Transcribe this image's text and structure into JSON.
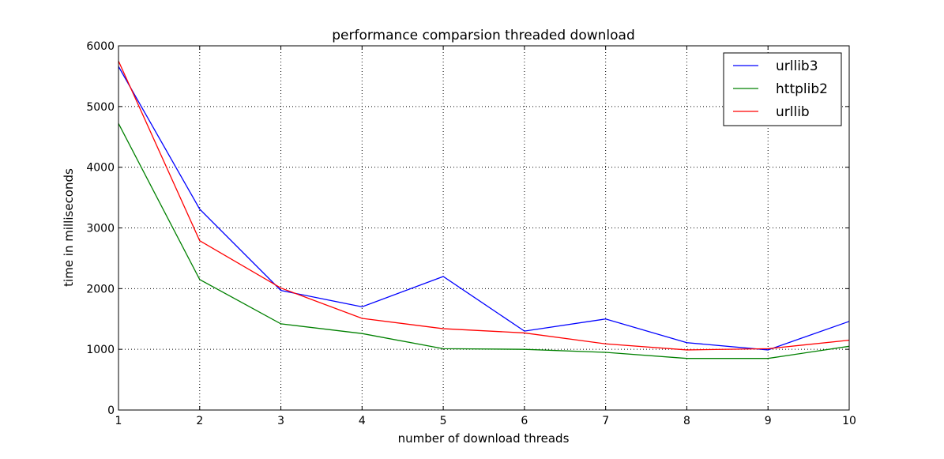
{
  "chart_data": {
    "type": "line",
    "title": "performance comparsion threaded download",
    "xlabel": "number of download threads",
    "ylabel": "time in milliseconds",
    "x": [
      1,
      2,
      3,
      4,
      5,
      6,
      7,
      8,
      9,
      10
    ],
    "xlim": [
      1,
      10
    ],
    "ylim": [
      0,
      6000
    ],
    "xticks": [
      1,
      2,
      3,
      4,
      5,
      6,
      7,
      8,
      9,
      10
    ],
    "yticks": [
      0,
      1000,
      2000,
      3000,
      4000,
      5000,
      6000
    ],
    "grid": true,
    "legend_position": "top-right",
    "series": [
      {
        "name": "urllib3",
        "color": "#0000ff",
        "values": [
          5660,
          3310,
          1970,
          1700,
          2200,
          1300,
          1500,
          1110,
          990,
          1460
        ]
      },
      {
        "name": "httplib2",
        "color": "#008000",
        "values": [
          4720,
          2150,
          1420,
          1260,
          1010,
          1000,
          950,
          850,
          850,
          1050
        ]
      },
      {
        "name": "urllib",
        "color": "#ff0000",
        "values": [
          5750,
          2790,
          2010,
          1510,
          1340,
          1270,
          1090,
          990,
          1010,
          1150
        ]
      }
    ]
  }
}
